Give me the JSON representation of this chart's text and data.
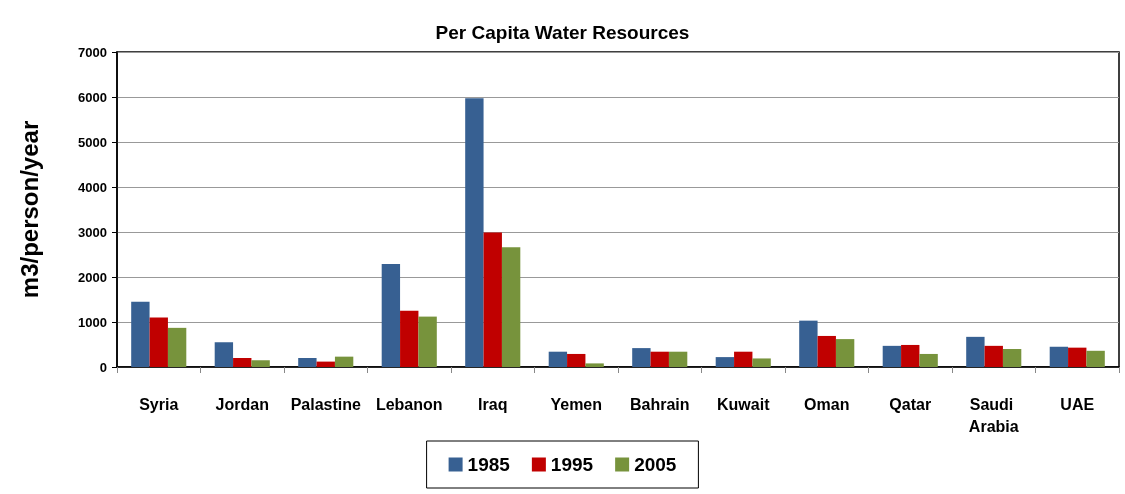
{
  "chart_data": {
    "type": "bar",
    "title": "Per Capita Water Resources",
    "ylabel": "m3/person/year",
    "categories": [
      "Syria",
      "Jordan",
      "Palastine",
      "Lebanon",
      "Iraq",
      "Yemen",
      "Bahrain",
      "Kuwait",
      "Oman",
      "Qatar",
      "Saudi Arabia",
      "UAE"
    ],
    "series": [
      {
        "name": "1985",
        "color": "#376092",
        "values": [
          1450,
          550,
          200,
          2290,
          5970,
          340,
          420,
          220,
          1030,
          470,
          670,
          450
        ]
      },
      {
        "name": "1995",
        "color": "#c00000",
        "values": [
          1100,
          200,
          120,
          1250,
          2990,
          290,
          340,
          340,
          690,
          490,
          470,
          430
        ]
      },
      {
        "name": "2005",
        "color": "#77933c",
        "values": [
          870,
          150,
          230,
          1120,
          2660,
          80,
          340,
          190,
          620,
          290,
          400,
          360
        ]
      }
    ],
    "ylim": [
      0,
      7000
    ],
    "yticks": [
      0,
      1000,
      2000,
      3000,
      4000,
      5000,
      6000,
      7000
    ],
    "grid": "y",
    "legend": "bottom"
  }
}
